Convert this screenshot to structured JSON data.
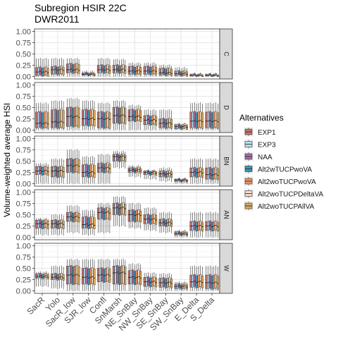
{
  "chart_data": {
    "type": "boxplot",
    "title": "Subregion HSIR 22C",
    "subtitle": "DWR2011",
    "ylabel": "Volume-weighted average HSI",
    "xlabel": "",
    "ylim": [
      0,
      1
    ],
    "y_ticks": [
      "0.00",
      "0.25",
      "0.50",
      "0.75",
      "1.00"
    ],
    "grid": true,
    "legend_position": "right",
    "legend_title": "Alternatives",
    "categories": [
      "SacR",
      "Yolo",
      "SacR_low",
      "SJR_low",
      "Confl",
      "SnMarsh",
      "NE_SnBay",
      "NW_SnBay",
      "SE_SnBay",
      "SW_SnBay",
      "E_Delta",
      "S_Delta"
    ],
    "series": [
      {
        "name": "EXP1",
        "color": "#C4756B"
      },
      {
        "name": "EXP3",
        "color": "#B9DDF1"
      },
      {
        "name": "NAA",
        "color": "#A76FA3"
      },
      {
        "name": "Alt2wTUCPwoVA",
        "color": "#3C97B4"
      },
      {
        "name": "Alt2woTUCPwoVA",
        "color": "#F3935A"
      },
      {
        "name": "Alt2woTUCPDeltaVA",
        "color": "#F6DCC6"
      },
      {
        "name": "Alt2woTUCPAllVA",
        "color": "#DAAA55"
      }
    ],
    "panels": [
      {
        "label": "C",
        "boxes": [
          [
            0.0,
            0.02,
            0.1,
            0.2,
            0.4
          ],
          [
            0.0,
            0.05,
            0.15,
            0.22,
            0.4
          ],
          [
            0.0,
            0.08,
            0.15,
            0.28,
            0.4
          ],
          [
            0.0,
            0.03,
            0.05,
            0.08,
            0.12
          ],
          [
            0.0,
            0.08,
            0.15,
            0.25,
            0.4
          ],
          [
            0.0,
            0.08,
            0.15,
            0.25,
            0.38
          ],
          [
            0.0,
            0.05,
            0.12,
            0.22,
            0.3
          ],
          [
            0.0,
            0.05,
            0.12,
            0.22,
            0.3
          ],
          [
            0.0,
            0.03,
            0.08,
            0.18,
            0.25
          ],
          [
            0.0,
            0.02,
            0.06,
            0.12,
            0.2
          ],
          [
            0.0,
            0.01,
            0.02,
            0.05,
            0.07
          ],
          [
            0.0,
            0.01,
            0.02,
            0.05,
            0.07
          ]
        ]
      },
      {
        "label": "D",
        "boxes": [
          [
            0.0,
            0.05,
            0.15,
            0.4,
            0.6
          ],
          [
            0.0,
            0.05,
            0.18,
            0.45,
            0.65
          ],
          [
            0.0,
            0.08,
            0.3,
            0.5,
            0.7
          ],
          [
            0.0,
            0.1,
            0.25,
            0.45,
            0.65
          ],
          [
            0.0,
            0.05,
            0.25,
            0.4,
            0.6
          ],
          [
            0.0,
            0.15,
            0.32,
            0.5,
            0.65
          ],
          [
            0.0,
            0.2,
            0.3,
            0.45,
            0.55
          ],
          [
            0.0,
            0.12,
            0.22,
            0.32,
            0.45
          ],
          [
            0.0,
            0.05,
            0.15,
            0.25,
            0.45
          ],
          [
            0.0,
            0.03,
            0.08,
            0.12,
            0.15
          ],
          [
            0.0,
            0.05,
            0.2,
            0.4,
            0.6
          ],
          [
            0.0,
            0.05,
            0.2,
            0.4,
            0.6
          ]
        ]
      },
      {
        "label": "BN",
        "boxes": [
          [
            0.0,
            0.2,
            0.28,
            0.38,
            0.45
          ],
          [
            0.0,
            0.15,
            0.28,
            0.38,
            0.55
          ],
          [
            0.0,
            0.25,
            0.4,
            0.55,
            0.75
          ],
          [
            0.0,
            0.15,
            0.25,
            0.42,
            0.6
          ],
          [
            0.0,
            0.25,
            0.35,
            0.45,
            0.65
          ],
          [
            0.35,
            0.5,
            0.6,
            0.65,
            0.72
          ],
          [
            0.15,
            0.25,
            0.3,
            0.35,
            0.4
          ],
          [
            0.1,
            0.2,
            0.25,
            0.28,
            0.3
          ],
          [
            0.05,
            0.15,
            0.22,
            0.28,
            0.35
          ],
          [
            0.0,
            0.05,
            0.08,
            0.1,
            0.12
          ],
          [
            0.0,
            0.15,
            0.25,
            0.35,
            0.55
          ],
          [
            0.0,
            0.1,
            0.2,
            0.35,
            0.55
          ]
        ]
      },
      {
        "label": "AN",
        "boxes": [
          [
            0.05,
            0.2,
            0.3,
            0.38,
            0.42
          ],
          [
            0.05,
            0.2,
            0.3,
            0.38,
            0.5
          ],
          [
            0.1,
            0.35,
            0.45,
            0.55,
            0.7
          ],
          [
            0.05,
            0.2,
            0.28,
            0.45,
            0.6
          ],
          [
            0.1,
            0.4,
            0.55,
            0.65,
            0.75
          ],
          [
            0.25,
            0.5,
            0.65,
            0.75,
            0.9
          ],
          [
            0.2,
            0.35,
            0.5,
            0.6,
            0.75
          ],
          [
            0.15,
            0.3,
            0.4,
            0.5,
            0.65
          ],
          [
            0.1,
            0.25,
            0.32,
            0.4,
            0.55
          ],
          [
            0.0,
            0.05,
            0.08,
            0.12,
            0.15
          ],
          [
            0.0,
            0.15,
            0.25,
            0.35,
            0.55
          ],
          [
            0.0,
            0.15,
            0.25,
            0.35,
            0.55
          ]
        ]
      },
      {
        "label": "W",
        "boxes": [
          [
            0.1,
            0.28,
            0.32,
            0.38,
            0.42
          ],
          [
            0.05,
            0.25,
            0.3,
            0.38,
            0.55
          ],
          [
            0.0,
            0.15,
            0.35,
            0.55,
            0.7
          ],
          [
            0.0,
            0.15,
            0.3,
            0.5,
            0.7
          ],
          [
            0.0,
            0.2,
            0.35,
            0.5,
            0.7
          ],
          [
            0.0,
            0.15,
            0.4,
            0.55,
            0.7
          ],
          [
            0.0,
            0.15,
            0.3,
            0.45,
            0.6
          ],
          [
            0.0,
            0.1,
            0.2,
            0.3,
            0.4
          ],
          [
            0.0,
            0.08,
            0.18,
            0.28,
            0.38
          ],
          [
            0.0,
            0.05,
            0.1,
            0.15,
            0.2
          ],
          [
            0.0,
            0.08,
            0.2,
            0.35,
            0.55
          ],
          [
            0.0,
            0.05,
            0.18,
            0.35,
            0.55
          ]
        ]
      }
    ]
  }
}
